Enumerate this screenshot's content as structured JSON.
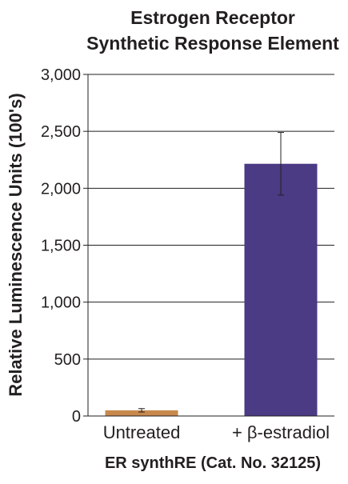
{
  "chart_data": {
    "type": "bar",
    "title": [
      "Estrogen Receptor",
      "Synthetic Response Element"
    ],
    "xlabel": "ER synthRE (Cat. No. 32125)",
    "ylabel": "Relative Luminescence Units (100's)",
    "ylim": [
      0,
      3000
    ],
    "yticks": [
      0,
      500,
      1000,
      1500,
      2000,
      2500,
      3000
    ],
    "ytick_labels": [
      "0",
      "500",
      "1,000",
      "1,500",
      "2,000",
      "2,500",
      "3,000"
    ],
    "categories": [
      "Untreated",
      "+ β-estradiol"
    ],
    "values": [
      50,
      2215
    ],
    "errors": [
      15,
      275
    ],
    "colors": [
      "#c8894d",
      "#4b3a84"
    ],
    "grid": true
  }
}
